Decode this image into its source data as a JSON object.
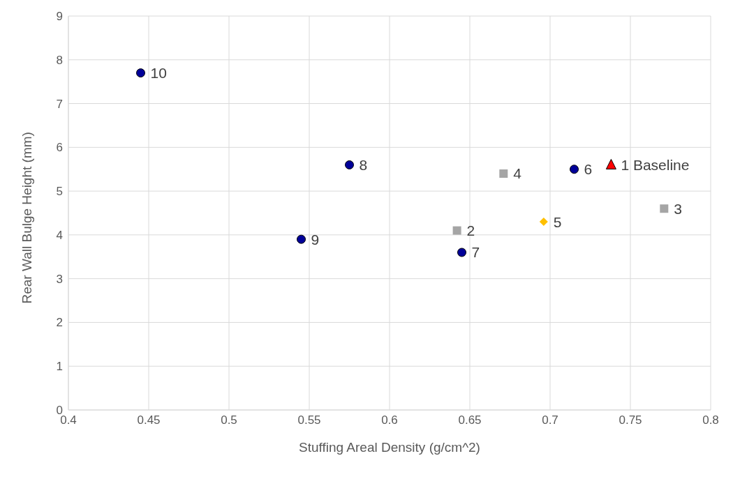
{
  "chart_data": {
    "type": "scatter",
    "xlabel": "Stuffing Areal Density (g/cm^2)",
    "ylabel": "Rear Wall Bulge Height (mm)",
    "xlim": [
      0.4,
      0.8
    ],
    "xticks": [
      0.4,
      0.45,
      0.5,
      0.55,
      0.6,
      0.65,
      0.7,
      0.75,
      0.8
    ],
    "ylim": [
      0,
      9
    ],
    "yticks": [
      0,
      1,
      2,
      3,
      4,
      5,
      6,
      7,
      8,
      9
    ],
    "grid": true,
    "series": [
      {
        "color": "#000099",
        "marker": "circle",
        "x": [
          0.445,
          0.575,
          0.545,
          0.645,
          0.715
        ],
        "values": [
          7.7,
          5.6,
          3.9,
          3.6,
          5.5
        ]
      },
      {
        "color": "#a5a5a5",
        "marker": "square",
        "x": [
          0.642,
          0.671,
          0.771
        ],
        "values": [
          4.1,
          5.4,
          4.6
        ]
      },
      {
        "color": "#ffc000",
        "marker": "diamond",
        "x": [
          0.696
        ],
        "values": [
          4.3
        ]
      },
      {
        "color": "#ff0000",
        "marker": "triangle",
        "x": [
          0.738
        ],
        "values": [
          5.6
        ]
      }
    ],
    "annotations": [
      {
        "text": "10",
        "x": 0.445,
        "y": 7.7
      },
      {
        "text": "8",
        "x": 0.575,
        "y": 5.6
      },
      {
        "text": "9",
        "x": 0.545,
        "y": 3.9
      },
      {
        "text": "7",
        "x": 0.645,
        "y": 3.6
      },
      {
        "text": "6",
        "x": 0.715,
        "y": 5.5
      },
      {
        "text": "2",
        "x": 0.642,
        "y": 4.1
      },
      {
        "text": "4",
        "x": 0.671,
        "y": 5.4
      },
      {
        "text": "3",
        "x": 0.771,
        "y": 4.6
      },
      {
        "text": "5",
        "x": 0.696,
        "y": 4.3
      },
      {
        "text": "1 Baseline",
        "x": 0.738,
        "y": 5.6
      }
    ]
  }
}
